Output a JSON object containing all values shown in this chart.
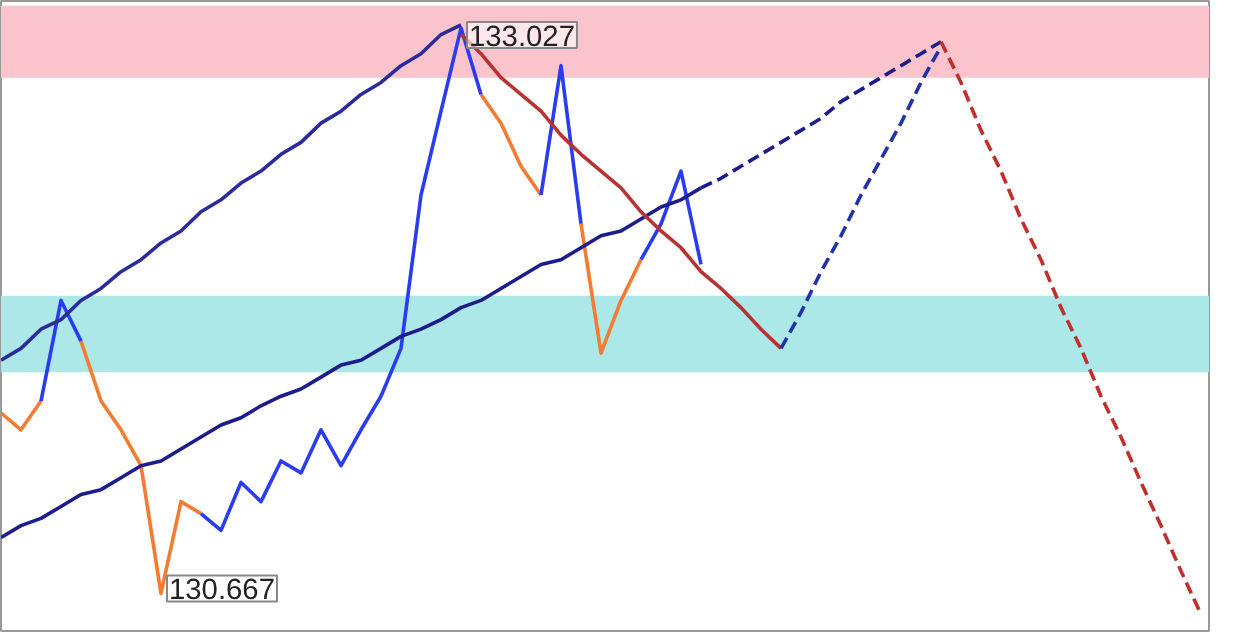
{
  "chart_data": {
    "type": "line",
    "ylim": [
      130.51,
      133.14
    ],
    "tick_labels": false,
    "categories": [
      null,
      null,
      null,
      null,
      null,
      null,
      null,
      null,
      null,
      null,
      null,
      null,
      null,
      null,
      null,
      null,
      null,
      null,
      null,
      null,
      null,
      null,
      null,
      null,
      null,
      null,
      null,
      null,
      null,
      null,
      null,
      null,
      null,
      null,
      null,
      null,
      null,
      null,
      null,
      null,
      null,
      null,
      null,
      null,
      null,
      null,
      null,
      null,
      null,
      null,
      null,
      null,
      null,
      null,
      null,
      null,
      null,
      null,
      null,
      null,
      null
    ],
    "bands": [
      {
        "axis": "y",
        "from": 132.82,
        "to": 133.12,
        "color": "#fbc3cc"
      },
      {
        "axis": "y",
        "from": 131.59,
        "to": 131.91,
        "color": "#ace8e8"
      }
    ],
    "series": [
      {
        "color": "#f47b30",
        "values": [
          131.42,
          131.35,
          131.47,
          null,
          131.72,
          131.47,
          131.35,
          131.2,
          130.667,
          131.05,
          131.0,
          null,
          null,
          null,
          null,
          null,
          null,
          null,
          null,
          null,
          null,
          null,
          null,
          null,
          132.75,
          132.63,
          132.45,
          132.33,
          null,
          132.21,
          131.67,
          131.89,
          132.06,
          null,
          null,
          null,
          null,
          null,
          null,
          null,
          null,
          null,
          null,
          null,
          null,
          null,
          null,
          null,
          null,
          null,
          null,
          null,
          null,
          null,
          null,
          null,
          null,
          null,
          null,
          null,
          null
        ],
        "value_labels": [
          null,
          null,
          null,
          null,
          null,
          null,
          null,
          null,
          "130.667",
          null,
          null,
          null,
          null,
          null,
          null,
          null,
          null,
          null,
          null,
          null,
          null,
          null,
          null,
          null,
          null,
          null,
          null,
          null,
          null,
          null,
          null,
          null,
          null,
          null,
          null,
          null,
          null,
          null,
          null,
          null,
          null,
          null,
          null,
          null,
          null,
          null,
          null,
          null,
          null,
          null,
          null,
          null,
          null,
          null,
          null,
          null,
          null,
          null,
          null,
          null,
          null
        ]
      },
      {
        "color": "#2a3cf0",
        "values": [
          null,
          null,
          131.47,
          131.89,
          131.72,
          null,
          null,
          null,
          null,
          null,
          131.0,
          130.93,
          131.13,
          131.05,
          131.22,
          131.17,
          131.35,
          131.2,
          131.35,
          131.49,
          131.69,
          132.33,
          132.68,
          133.027,
          132.75,
          null,
          null,
          132.33,
          132.87,
          132.21,
          null,
          null,
          132.06,
          132.21,
          132.43,
          132.04,
          null,
          null,
          null,
          null,
          null,
          null,
          null,
          null,
          null,
          null,
          null,
          null,
          null,
          null,
          null,
          null,
          null,
          null,
          null,
          null,
          null,
          null,
          null,
          null,
          null
        ],
        "value_labels": [
          null,
          null,
          null,
          null,
          null,
          null,
          null,
          null,
          null,
          null,
          null,
          null,
          null,
          null,
          null,
          null,
          null,
          null,
          null,
          null,
          null,
          null,
          null,
          "133.027",
          null,
          null,
          null,
          null,
          null,
          null,
          null,
          null,
          null,
          null,
          null,
          null,
          null,
          null,
          null,
          null,
          null,
          null,
          null,
          null,
          null,
          null,
          null,
          null,
          null,
          null,
          null,
          null,
          null,
          null,
          null,
          null,
          null,
          null,
          null,
          null,
          null
        ]
      },
      {
        "color": "#2b2b9c",
        "values": [
          131.64,
          131.69,
          131.77,
          131.81,
          131.89,
          131.94,
          132.01,
          132.06,
          132.13,
          132.18,
          132.26,
          132.31,
          132.38,
          132.43,
          132.5,
          132.55,
          132.63,
          132.68,
          132.75,
          132.8,
          132.87,
          132.92,
          133.0,
          133.04,
          null,
          null,
          null,
          null,
          null,
          null,
          null,
          null,
          null,
          null,
          null,
          null,
          null,
          null,
          null,
          null,
          null,
          null,
          null,
          null,
          null,
          null,
          null,
          null,
          null,
          null,
          null,
          null,
          null,
          null,
          null,
          null,
          null,
          null,
          null,
          null,
          null
        ]
      },
      {
        "color": "#1c1c8c",
        "values": [
          130.9,
          130.95,
          130.98,
          131.03,
          131.08,
          131.1,
          131.15,
          131.2,
          131.22,
          131.27,
          131.32,
          131.37,
          131.4,
          131.45,
          131.49,
          131.52,
          131.57,
          131.62,
          131.64,
          131.69,
          131.74,
          131.77,
          131.81,
          131.86,
          131.89,
          131.94,
          131.99,
          132.04,
          132.06,
          132.11,
          132.16,
          132.18,
          132.23,
          132.28,
          132.31,
          132.36,
          null,
          null,
          null,
          null,
          null,
          null,
          null,
          null,
          null,
          null,
          null,
          null,
          null,
          null,
          null,
          null,
          null,
          null,
          null,
          null,
          null,
          null,
          null,
          null,
          null
        ]
      },
      {
        "color": "#1c1c8c",
        "line_style": "dashed",
        "values": [
          null,
          null,
          null,
          null,
          null,
          null,
          null,
          null,
          null,
          null,
          null,
          null,
          null,
          null,
          null,
          null,
          null,
          null,
          null,
          null,
          null,
          null,
          null,
          null,
          null,
          null,
          null,
          null,
          null,
          null,
          null,
          null,
          null,
          null,
          null,
          132.36,
          132.4,
          132.45,
          132.5,
          132.55,
          132.6,
          132.65,
          132.72,
          132.77,
          132.82,
          132.87,
          132.92,
          132.97,
          null,
          null,
          null,
          null,
          null,
          null,
          null,
          null,
          null,
          null,
          null,
          null,
          null
        ]
      },
      {
        "color": "#b83232",
        "values": [
          null,
          null,
          null,
          null,
          null,
          null,
          null,
          null,
          null,
          null,
          null,
          null,
          null,
          null,
          null,
          null,
          null,
          null,
          null,
          null,
          null,
          null,
          null,
          133.0,
          132.92,
          132.82,
          132.75,
          132.68,
          132.58,
          132.5,
          132.43,
          132.36,
          132.26,
          132.18,
          132.11,
          132.01,
          131.94,
          131.86,
          131.77,
          131.69,
          null,
          null,
          null,
          null,
          null,
          null,
          null,
          null,
          null,
          null,
          null,
          null,
          null,
          null,
          null,
          null,
          null,
          null,
          null,
          null,
          null
        ]
      },
      {
        "color": "#2233aa",
        "line_style": "dashed",
        "values": [
          null,
          null,
          null,
          null,
          null,
          null,
          null,
          null,
          null,
          null,
          null,
          null,
          null,
          null,
          null,
          null,
          null,
          null,
          null,
          null,
          null,
          null,
          null,
          null,
          null,
          null,
          null,
          null,
          null,
          null,
          null,
          null,
          null,
          null,
          null,
          null,
          null,
          null,
          null,
          131.69,
          131.84,
          132.01,
          132.16,
          132.33,
          132.48,
          132.63,
          132.8,
          132.95,
          null,
          null,
          null,
          null,
          null,
          null,
          null,
          null,
          null,
          null,
          null,
          null,
          null
        ]
      },
      {
        "color": "#c0302a",
        "line_style": "dashed",
        "values": [
          null,
          null,
          null,
          null,
          null,
          null,
          null,
          null,
          null,
          null,
          null,
          null,
          null,
          null,
          null,
          null,
          null,
          null,
          null,
          null,
          null,
          null,
          null,
          null,
          null,
          null,
          null,
          null,
          null,
          null,
          null,
          null,
          null,
          null,
          null,
          null,
          null,
          null,
          null,
          null,
          null,
          null,
          null,
          null,
          null,
          null,
          null,
          132.97,
          132.8,
          132.6,
          132.43,
          132.23,
          132.06,
          131.86,
          131.69,
          131.49,
          131.32,
          131.13,
          130.95,
          130.76,
          130.58
        ]
      }
    ]
  }
}
